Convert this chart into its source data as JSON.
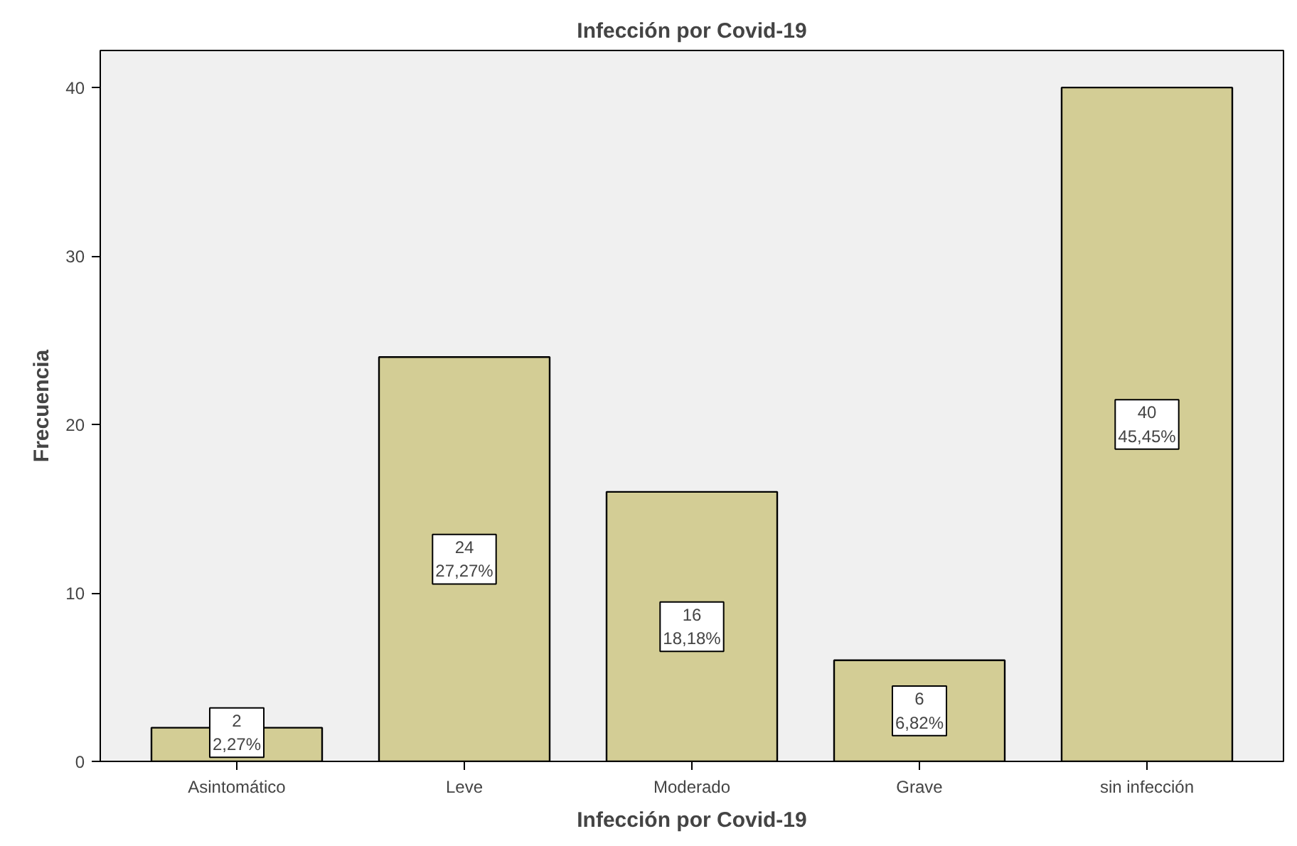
{
  "chart_data": {
    "type": "bar",
    "title": "Infección por Covid-19",
    "xlabel": "Infección por Covid-19",
    "ylabel": "Frecuencia",
    "categories": [
      "Asintomático",
      "Leve",
      "Moderado",
      "Grave",
      "sin infección"
    ],
    "values": [
      2,
      24,
      16,
      6,
      40
    ],
    "value_labels": [
      "2\n2,27%",
      "24\n27,27%",
      "16\n18,18%",
      "6\n6,82%",
      "40\n45,45%"
    ],
    "color": "#d3cd95",
    "ylim": [
      0,
      42.2
    ],
    "yticks": [
      0,
      10,
      20,
      30,
      40
    ],
    "grid": false
  }
}
